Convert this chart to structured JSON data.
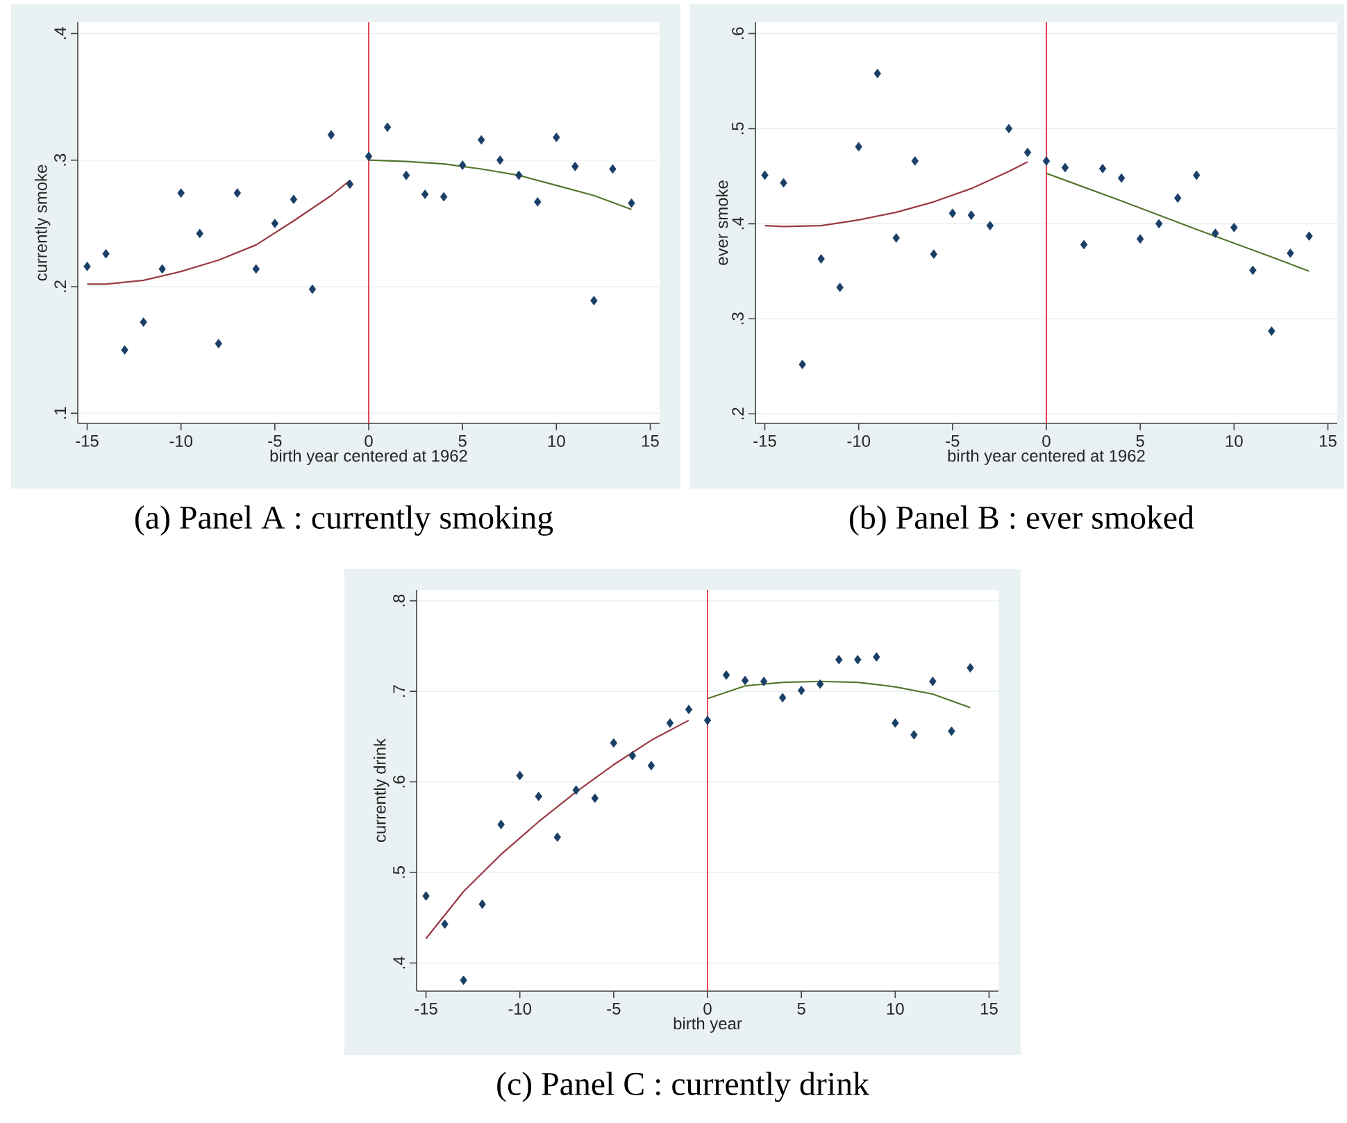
{
  "chart_data": [
    {
      "type": "scatter",
      "title": "(a) Panel A : currently smoking",
      "xlabel": "birth year centered at 1962",
      "ylabel": "currently smoke",
      "x": [
        -15,
        -14,
        -13,
        -12,
        -11,
        -10,
        -9,
        -8,
        -7,
        -6,
        -5,
        -4,
        -3,
        -2,
        -1,
        0,
        1,
        2,
        3,
        4,
        5,
        6,
        7,
        8,
        9,
        10,
        11,
        12,
        13,
        14
      ],
      "xlim": [
        -15.5,
        15.5
      ],
      "xticks": [
        -15,
        -10,
        -5,
        0,
        5,
        10,
        15
      ],
      "ylim": [
        0.092,
        0.409
      ],
      "yticks": [
        {
          "value": 0.1,
          "label": ".1"
        },
        {
          "value": 0.2,
          "label": ".2"
        },
        {
          "value": 0.3,
          "label": ".3"
        },
        {
          "value": 0.4,
          "label": ".4"
        }
      ],
      "grid": "y",
      "ref_lines": [
        {
          "axis": "x",
          "value": 0,
          "color": "#e03040"
        }
      ],
      "series": [
        {
          "marker": "diamond",
          "color": "#1a3f66",
          "values": [
            0.216,
            0.226,
            0.15,
            0.172,
            0.214,
            0.274,
            0.242,
            0.155,
            0.274,
            0.214,
            0.25,
            0.269,
            0.198,
            0.32,
            0.281,
            0.303,
            0.326,
            0.288,
            0.273,
            0.271,
            0.296,
            0.316,
            0.3,
            0.288,
            0.267,
            0.318,
            0.295,
            0.189,
            0.293,
            0.266
          ]
        },
        {
          "type": "line",
          "color": "#9a3a44",
          "x": [
            -15,
            -14,
            -12,
            -10,
            -8,
            -6,
            -4,
            -2,
            -1
          ],
          "values": [
            0.202,
            0.202,
            0.205,
            0.212,
            0.221,
            0.233,
            0.252,
            0.272,
            0.284
          ]
        },
        {
          "type": "line",
          "color": "#56762f",
          "x": [
            0,
            2,
            4,
            6,
            8,
            10,
            12,
            14
          ],
          "values": [
            0.3,
            0.299,
            0.297,
            0.293,
            0.288,
            0.28,
            0.272,
            0.261
          ]
        }
      ]
    },
    {
      "type": "scatter",
      "title": "(b) Panel B : ever smoked",
      "xlabel": "birth year centered at 1962",
      "ylabel": "ever smoke",
      "x": [
        -15,
        -14,
        -13,
        -12,
        -11,
        -10,
        -9,
        -8,
        -7,
        -6,
        -5,
        -4,
        -3,
        -2,
        -1,
        0,
        1,
        2,
        3,
        4,
        5,
        6,
        7,
        8,
        9,
        10,
        11,
        12,
        13,
        14
      ],
      "xlim": [
        -15.5,
        15.5
      ],
      "xticks": [
        -15,
        -10,
        -5,
        0,
        5,
        10,
        15
      ],
      "ylim": [
        0.19,
        0.612
      ],
      "yticks": [
        {
          "value": 0.2,
          "label": ".2"
        },
        {
          "value": 0.3,
          "label": ".3"
        },
        {
          "value": 0.4,
          "label": ".4"
        },
        {
          "value": 0.5,
          "label": ".5"
        },
        {
          "value": 0.6,
          "label": ".6"
        }
      ],
      "grid": "y",
      "ref_lines": [
        {
          "axis": "x",
          "value": 0,
          "color": "#e03040"
        }
      ],
      "series": [
        {
          "marker": "diamond",
          "color": "#1a3f66",
          "values": [
            0.451,
            0.443,
            0.252,
            0.363,
            0.333,
            0.481,
            0.558,
            0.385,
            0.466,
            0.368,
            0.411,
            0.409,
            0.398,
            0.5,
            0.475,
            0.466,
            0.459,
            0.378,
            0.458,
            0.448,
            0.384,
            0.4,
            0.427,
            0.451,
            0.39,
            0.396,
            0.351,
            0.287,
            0.369,
            0.387
          ]
        },
        {
          "type": "line",
          "color": "#9a3a44",
          "x": [
            -15,
            -14,
            -12,
            -10,
            -8,
            -6,
            -4,
            -2,
            -1
          ],
          "values": [
            0.398,
            0.397,
            0.398,
            0.404,
            0.412,
            0.423,
            0.437,
            0.455,
            0.465
          ]
        },
        {
          "type": "line",
          "color": "#56762f",
          "x": [
            0,
            4,
            8,
            12,
            14
          ],
          "values": [
            0.453,
            0.424,
            0.394,
            0.365,
            0.35
          ]
        }
      ]
    },
    {
      "type": "scatter",
      "title": "(c) Panel C : currently drink",
      "xlabel": "birth year",
      "ylabel": "currently drink",
      "x": [
        -15,
        -14,
        -13,
        -12,
        -11,
        -10,
        -9,
        -8,
        -7,
        -6,
        -5,
        -4,
        -3,
        -2,
        -1,
        0,
        1,
        2,
        3,
        4,
        5,
        6,
        7,
        8,
        9,
        10,
        11,
        12,
        13,
        14
      ],
      "xlim": [
        -15.5,
        15.5
      ],
      "xticks": [
        -15,
        -10,
        -5,
        0,
        5,
        10,
        15
      ],
      "ylim": [
        0.369,
        0.812
      ],
      "yticks": [
        {
          "value": 0.4,
          "label": ".4"
        },
        {
          "value": 0.5,
          "label": ".5"
        },
        {
          "value": 0.6,
          "label": ".6"
        },
        {
          "value": 0.7,
          "label": ".7"
        },
        {
          "value": 0.8,
          "label": ".8"
        }
      ],
      "grid": "y",
      "ref_lines": [
        {
          "axis": "x",
          "value": 0,
          "color": "#e03040"
        }
      ],
      "series": [
        {
          "marker": "diamond",
          "color": "#1a3f66",
          "values": [
            0.474,
            0.443,
            0.381,
            0.465,
            0.553,
            0.607,
            0.584,
            0.539,
            0.591,
            0.582,
            0.643,
            0.629,
            0.618,
            0.665,
            0.68,
            0.668,
            0.718,
            0.712,
            0.711,
            0.693,
            0.701,
            0.708,
            0.735,
            0.735,
            0.738,
            0.665,
            0.652,
            0.711,
            0.656,
            0.726
          ]
        },
        {
          "type": "line",
          "color": "#9a3a44",
          "x": [
            -15,
            -13,
            -11,
            -9,
            -7,
            -5,
            -3,
            -1
          ],
          "values": [
            0.427,
            0.479,
            0.52,
            0.556,
            0.589,
            0.619,
            0.646,
            0.668
          ]
        },
        {
          "type": "line",
          "color": "#56762f",
          "x": [
            0,
            2,
            4,
            6,
            8,
            10,
            12,
            14
          ],
          "values": [
            0.692,
            0.706,
            0.71,
            0.711,
            0.71,
            0.705,
            0.697,
            0.682
          ]
        }
      ]
    }
  ]
}
